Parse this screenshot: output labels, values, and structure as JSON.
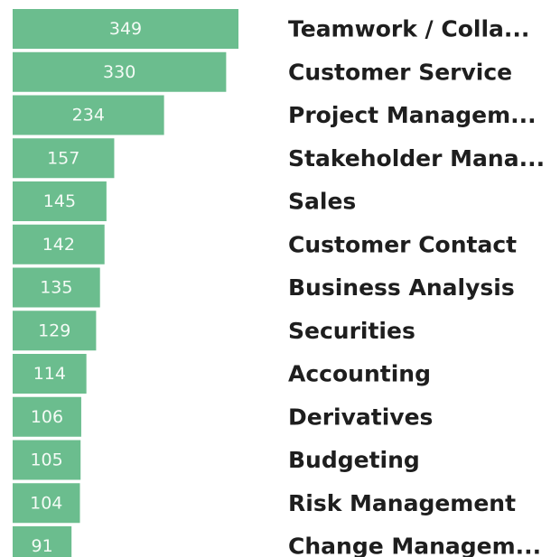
{
  "chart_data": {
    "type": "barh",
    "categories": [
      "Teamwork / Colla...",
      "Customer Service",
      "Project Managem...",
      "Stakeholder Mana...",
      "Sales",
      "Customer Contact",
      "Business Analysis",
      "Securities",
      "Accounting",
      "Derivatives",
      "Budgeting",
      "Risk Management",
      "Change Managem..."
    ],
    "values": [
      349,
      330,
      234,
      157,
      145,
      142,
      135,
      129,
      114,
      106,
      105,
      104,
      91
    ],
    "color": "#6bbd8e"
  }
}
